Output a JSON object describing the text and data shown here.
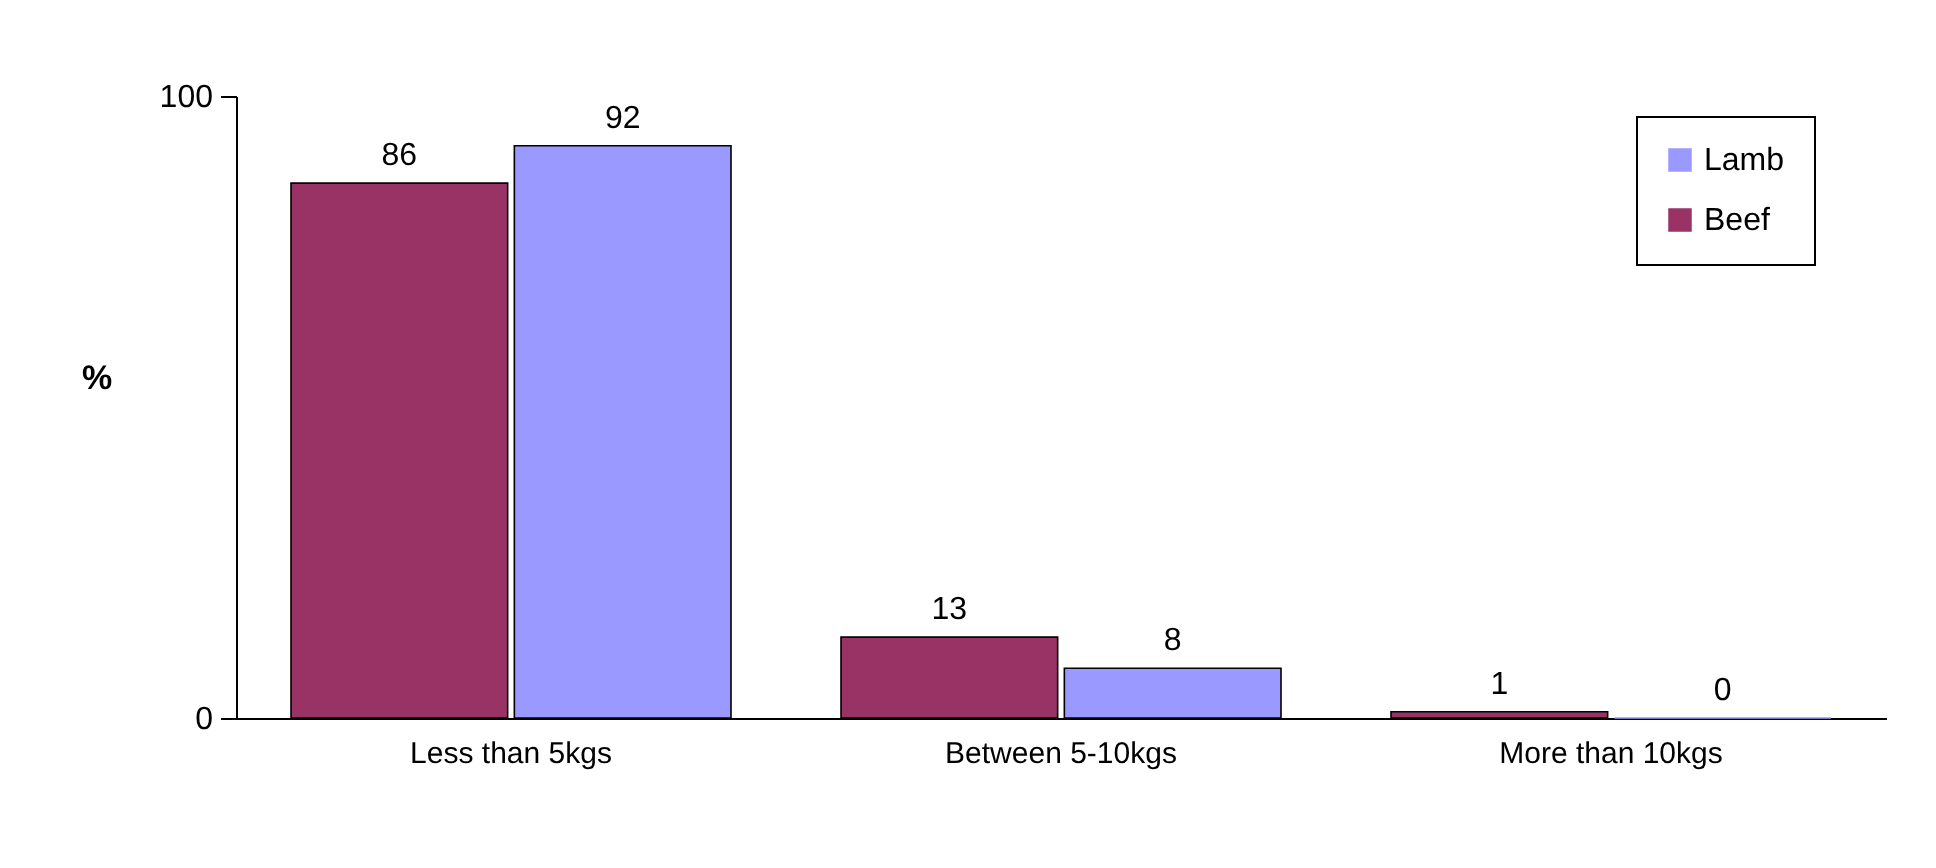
{
  "chart_data": {
    "type": "bar",
    "ylabel": "%",
    "categories": [
      "Less than 5kgs",
      "Between 5-10kgs",
      "More than 10kgs"
    ],
    "series": [
      {
        "name": "Beef",
        "color": "#993366",
        "values": [
          86,
          13,
          1
        ]
      },
      {
        "name": "Lamb",
        "color": "#9999ff",
        "values": [
          92,
          8,
          0
        ]
      }
    ],
    "ylim": [
      0,
      100
    ],
    "yticks": [
      0,
      100
    ],
    "grid": false,
    "legend": "top right",
    "data_labels": true
  }
}
